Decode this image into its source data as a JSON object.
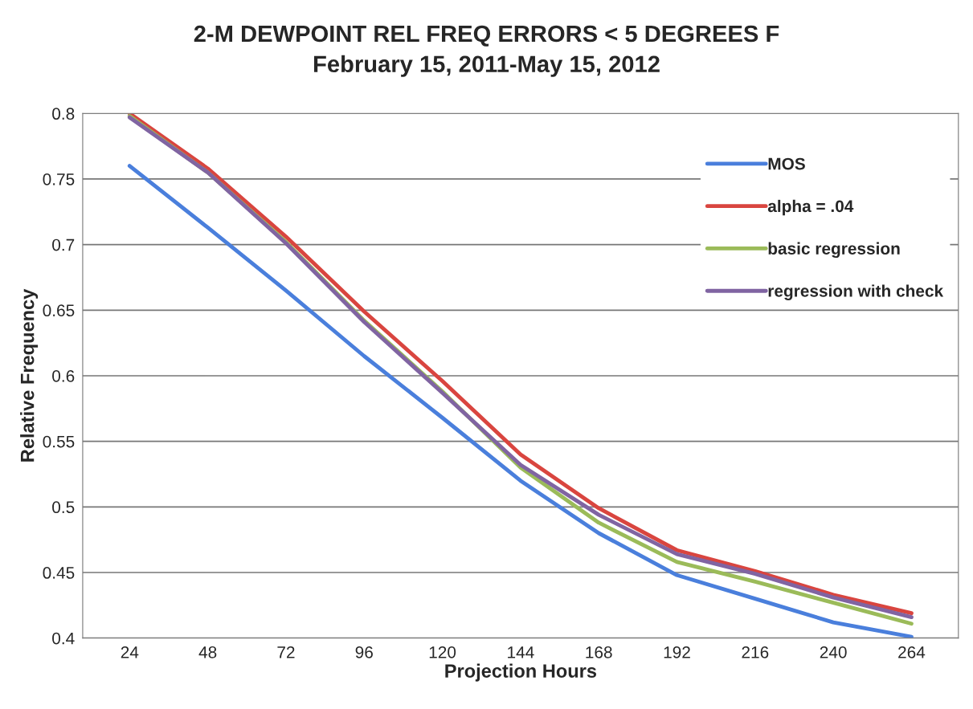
{
  "chart_data": {
    "type": "line",
    "title": "2-M DEWPOINT REL FREQ ERRORS < 5 DEGREES F",
    "subtitle": "February 15, 2011-May 15, 2012",
    "xlabel": "Projection Hours",
    "ylabel": "Relative Frequency",
    "categories": [
      "24",
      "48",
      "72",
      "96",
      "120",
      "144",
      "168",
      "192",
      "216",
      "240",
      "264"
    ],
    "series": [
      {
        "name": "MOS",
        "color": "#4a7fdc",
        "values": [
          0.76,
          0.713,
          0.665,
          0.615,
          0.568,
          0.52,
          0.48,
          0.448,
          0.43,
          0.412,
          0.401
        ]
      },
      {
        "name": "alpha = .04",
        "color": "#d9453f",
        "values": [
          0.8,
          0.758,
          0.706,
          0.649,
          0.596,
          0.54,
          0.499,
          0.467,
          0.451,
          0.433,
          0.419
        ]
      },
      {
        "name": "basic regression",
        "color": "#9bbb59",
        "values": [
          0.798,
          0.755,
          0.702,
          0.642,
          0.588,
          0.53,
          0.488,
          0.458,
          0.443,
          0.427,
          0.411
        ]
      },
      {
        "name": "regression with check",
        "color": "#8064a2",
        "values": [
          0.797,
          0.755,
          0.701,
          0.641,
          0.587,
          0.532,
          0.494,
          0.464,
          0.449,
          0.431,
          0.416
        ]
      }
    ],
    "ylim": [
      0.4,
      0.8
    ],
    "yticks": [
      0.4,
      0.45,
      0.5,
      0.55,
      0.6,
      0.65,
      0.7,
      0.75,
      0.8
    ],
    "grid": "y",
    "legend": "right"
  }
}
